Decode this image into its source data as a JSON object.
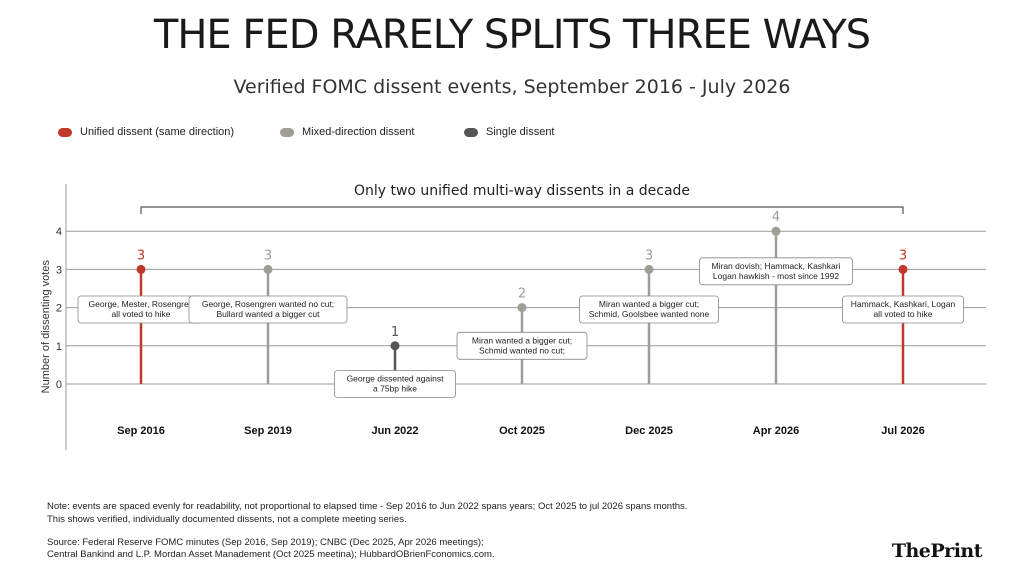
{
  "header": {
    "title": "THE FED RARELY SPLITS THREE WAYS",
    "subtitle": "Verified FOMC dissent events, September 2016 - July 2026"
  },
  "legend": [
    {
      "label": "Unified dissent (same direction)",
      "color": "#c0392b"
    },
    {
      "label": "Mixed-direction dissent",
      "color": "#9e9e96"
    },
    {
      "label": "Single dissent",
      "color": "#555555"
    }
  ],
  "chart_data": {
    "type": "scatter",
    "ylabel": "Number of dissenting votes",
    "xlabel": "",
    "ylim": [
      0,
      4
    ],
    "yticks": [
      0,
      1,
      2,
      3,
      4
    ],
    "grid": true,
    "bracket_label": "Only two unified multi-way dissents in a decade",
    "bracket_span": [
      "Sep 2016",
      "Jul 2026"
    ],
    "categories": [
      "Sep 2016",
      "Sep 2019",
      "Jun 2022",
      "Oct 2025",
      "Dec 2025",
      "Apr 2026",
      "Jul 2026"
    ],
    "points": [
      {
        "x": "Sep 2016",
        "y": 3,
        "kind": "unified",
        "note": [
          "George, Mester, Rosengren",
          "all voted to hike"
        ]
      },
      {
        "x": "Sep 2019",
        "y": 3,
        "kind": "mixed",
        "note": [
          "George, Rosengren wanted no cut;",
          "Bullard wanted a bigger cut"
        ]
      },
      {
        "x": "Jun 2022",
        "y": 1,
        "kind": "single",
        "note": [
          "George dissented against",
          "a 75bp hike"
        ]
      },
      {
        "x": "Oct 2025",
        "y": 2,
        "kind": "mixed",
        "note": [
          "Miran wanted a bigger cut;",
          "Schmid wanted no cut;"
        ]
      },
      {
        "x": "Dec 2025",
        "y": 3,
        "kind": "mixed",
        "note": [
          "Miran wanted a bigger cut;",
          "Schmid, Goolsbee wanted none"
        ]
      },
      {
        "x": "Apr 2026",
        "y": 4,
        "kind": "mixed",
        "note": [
          "Miran dovish; Hammack, Kashkari",
          "Logan hawkish - most since 1992"
        ]
      },
      {
        "x": "Jul 2026",
        "y": 3,
        "kind": "unified",
        "note": [
          "Hammack, Kashkari, Logan",
          "all voted to hike"
        ]
      }
    ],
    "colors": {
      "unified": "#c0392b",
      "mixed": "#9e9e96",
      "single": "#555555",
      "grid": "#9a9a9a"
    }
  },
  "footer": {
    "note_1": "Note: events are spaced evenly for readability, not proportional to elapsed time - Sep 2016 to Jun 2022 spans years; Oct 2025 to jul 2026 spans months.",
    "note_2": "This shows verified, individually documented dissents, not a complete meeting series.",
    "source_1": "Source: Federal Reserve FOMC minutes (Sep 2016, Sep 2019); CNBC (Dec 2025, Apr 2026 meetings);",
    "source_2": "Central Bankind and L.P. Mordan Asset Manadement (Oct 2025 meetina); HubbardOBrienFconomics.com.",
    "brand_the": "The",
    "brand_print": "Print"
  }
}
